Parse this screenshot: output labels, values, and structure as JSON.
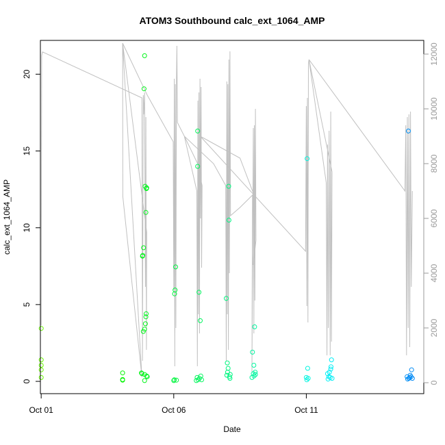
{
  "chart_data": {
    "type": "scatter",
    "title": "ATOM3 Southbound calc_ext_1064_AMP",
    "xlabel": "Date",
    "ylabel": "calc_ext_1064_AMP",
    "x_ticks": [
      {
        "day": 1,
        "label": "Oct 01"
      },
      {
        "day": 6,
        "label": "Oct 06"
      },
      {
        "day": 11,
        "label": "Oct 11"
      }
    ],
    "xlim": [
      0.97,
      15.43
    ],
    "ylim": [
      -0.8,
      22.2
    ],
    "y_ticks": [
      0,
      5,
      10,
      15,
      20
    ],
    "y2lim": [
      -400,
      12500
    ],
    "y2_ticks": [
      0,
      2000,
      4000,
      6000,
      8000,
      10000,
      12000
    ],
    "grid": false,
    "scatter_series": {
      "color_scale": "time (green to blue)",
      "points": [
        [
          1.0,
          3.45
        ],
        [
          1.0,
          1.4
        ],
        [
          1.0,
          1.05
        ],
        [
          1.0,
          0.75
        ],
        [
          1.0,
          0.25
        ],
        [
          4.07,
          0.55
        ],
        [
          4.07,
          0.12
        ],
        [
          4.07,
          0.08
        ],
        [
          4.78,
          0.55
        ],
        [
          4.8,
          0.5
        ],
        [
          4.82,
          8.15
        ],
        [
          4.83,
          8.2
        ],
        [
          4.85,
          3.25
        ],
        [
          4.86,
          8.7
        ],
        [
          4.88,
          19.05
        ],
        [
          4.9,
          21.2
        ],
        [
          4.9,
          3.4
        ],
        [
          4.9,
          0.05
        ],
        [
          4.9,
          0.45
        ],
        [
          4.92,
          12.7
        ],
        [
          4.93,
          3.75
        ],
        [
          4.95,
          4.2
        ],
        [
          4.95,
          11.0
        ],
        [
          4.96,
          4.4
        ],
        [
          4.97,
          12.55
        ],
        [
          4.98,
          12.6
        ],
        [
          4.98,
          0.35
        ],
        [
          5.0,
          0.3
        ],
        [
          6.0,
          0.05
        ],
        [
          6.02,
          0.1
        ],
        [
          6.03,
          5.7
        ],
        [
          6.05,
          5.95
        ],
        [
          6.07,
          7.45
        ],
        [
          6.1,
          0.08
        ],
        [
          6.85,
          0.05
        ],
        [
          6.88,
          0.25
        ],
        [
          6.9,
          16.3
        ],
        [
          6.9,
          14.0
        ],
        [
          6.92,
          0.1
        ],
        [
          6.95,
          5.8
        ],
        [
          6.97,
          0.2
        ],
        [
          7.0,
          3.95
        ],
        [
          7.02,
          0.35
        ],
        [
          7.05,
          0.1
        ],
        [
          7.98,
          5.4
        ],
        [
          8.0,
          0.4
        ],
        [
          8.02,
          1.2
        ],
        [
          8.03,
          0.6
        ],
        [
          8.05,
          0.85
        ],
        [
          8.07,
          12.7
        ],
        [
          8.08,
          10.5
        ],
        [
          8.1,
          0.3
        ],
        [
          8.12,
          0.2
        ],
        [
          8.13,
          0.45
        ],
        [
          8.95,
          0.25
        ],
        [
          8.97,
          1.9
        ],
        [
          9.0,
          0.5
        ],
        [
          9.02,
          1.05
        ],
        [
          9.03,
          0.35
        ],
        [
          9.05,
          3.55
        ],
        [
          9.07,
          0.6
        ],
        [
          9.08,
          0.45
        ],
        [
          11.0,
          0.25
        ],
        [
          11.02,
          0.1
        ],
        [
          11.03,
          14.5
        ],
        [
          11.05,
          0.85
        ],
        [
          11.07,
          0.2
        ],
        [
          11.8,
          0.5
        ],
        [
          11.82,
          0.15
        ],
        [
          11.85,
          0.3
        ],
        [
          11.87,
          0.6
        ],
        [
          11.9,
          0.25
        ],
        [
          11.92,
          0.8
        ],
        [
          11.93,
          0.95
        ],
        [
          11.95,
          1.4
        ],
        [
          11.97,
          0.2
        ],
        [
          14.8,
          0.3
        ],
        [
          14.82,
          0.15
        ],
        [
          14.85,
          16.3
        ],
        [
          14.87,
          0.2
        ],
        [
          14.9,
          0.25
        ],
        [
          14.92,
          0.4
        ],
        [
          14.95,
          0.3
        ],
        [
          14.97,
          0.75
        ],
        [
          15.0,
          0.2
        ]
      ]
    },
    "line_series": {
      "axis": "right",
      "color": "#c0c0c0",
      "points": [
        [
          1.0,
          2100
        ],
        [
          1.02,
          11950
        ],
        [
          1.05,
          12080
        ],
        [
          4.8,
          10400
        ],
        [
          4.82,
          800
        ],
        [
          4.85,
          10500
        ],
        [
          4.87,
          9800
        ],
        [
          4.9,
          10600
        ],
        [
          4.93,
          3500
        ],
        [
          4.95,
          9700
        ],
        [
          4.97,
          1200
        ],
        [
          4.98,
          5500
        ],
        [
          4.07,
          12400
        ],
        [
          4.08,
          6800
        ],
        [
          4.8,
          200
        ],
        [
          4.07,
          12400
        ],
        [
          5.0,
          10500
        ],
        [
          5.98,
          8800
        ],
        [
          6.0,
          3400
        ],
        [
          6.02,
          11100
        ],
        [
          6.04,
          600
        ],
        [
          6.06,
          10900
        ],
        [
          6.08,
          2000
        ],
        [
          6.1,
          11000
        ],
        [
          6.12,
          12300
        ],
        [
          6.14,
          9500
        ],
        [
          6.4,
          9000
        ],
        [
          6.87,
          7000
        ],
        [
          6.89,
          600
        ],
        [
          6.91,
          10300
        ],
        [
          6.93,
          2500
        ],
        [
          6.95,
          10600
        ],
        [
          6.97,
          1800
        ],
        [
          6.99,
          11100
        ],
        [
          7.01,
          6000
        ],
        [
          7.03,
          10800
        ],
        [
          7.05,
          4200
        ],
        [
          7.07,
          7200
        ],
        [
          6.9,
          8000
        ],
        [
          6.4,
          9000
        ],
        [
          7.5,
          8000
        ],
        [
          7.96,
          7200
        ],
        [
          7.98,
          800
        ],
        [
          8.0,
          11000
        ],
        [
          8.02,
          2500
        ],
        [
          8.04,
          10900
        ],
        [
          8.06,
          1200
        ],
        [
          8.08,
          11800
        ],
        [
          8.1,
          4000
        ],
        [
          8.12,
          12100
        ],
        [
          8.14,
          6100
        ],
        [
          8.5,
          6400
        ],
        [
          8.97,
          6850
        ],
        [
          8.95,
          400
        ],
        [
          9.0,
          9300
        ],
        [
          9.02,
          1800
        ],
        [
          9.04,
          9400
        ],
        [
          9.06,
          3000
        ],
        [
          9.08,
          10000
        ],
        [
          9.1,
          5200
        ],
        [
          9.0,
          4300
        ],
        [
          9.08,
          7000
        ],
        [
          9.05,
          6800
        ],
        [
          8.5,
          8200
        ],
        [
          7.0,
          9000
        ],
        [
          10.97,
          4800
        ],
        [
          11.0,
          10100
        ],
        [
          11.02,
          2800
        ],
        [
          11.04,
          10400
        ],
        [
          11.06,
          2200
        ],
        [
          11.08,
          11650
        ],
        [
          11.1,
          11800
        ],
        [
          11.75,
          7300
        ],
        [
          11.78,
          1000
        ],
        [
          11.8,
          8700
        ],
        [
          11.83,
          2000
        ],
        [
          11.86,
          9200
        ],
        [
          11.9,
          1000
        ],
        [
          11.92,
          9900
        ],
        [
          11.95,
          1500
        ],
        [
          11.97,
          7700
        ],
        [
          11.1,
          11800
        ],
        [
          14.72,
          7000
        ],
        [
          14.75,
          9400
        ],
        [
          14.78,
          1000
        ],
        [
          14.81,
          9700
        ],
        [
          14.84,
          2000
        ],
        [
          14.87,
          9800
        ],
        [
          14.9,
          1300
        ],
        [
          14.93,
          9900
        ],
        [
          14.96,
          3500
        ],
        [
          15.0,
          7000
        ]
      ]
    }
  }
}
